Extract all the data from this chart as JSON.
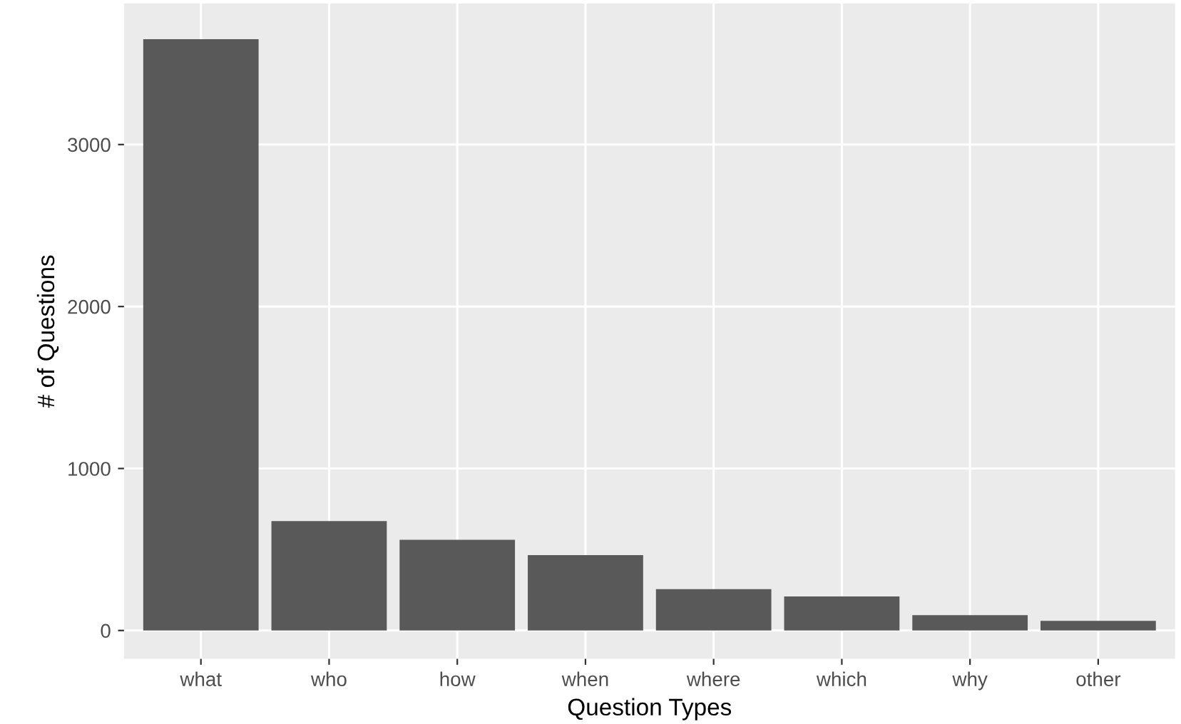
{
  "chart_data": {
    "type": "bar",
    "xlabel": "Question Types",
    "ylabel": "# of Questions",
    "categories": [
      "what",
      "who",
      "how",
      "when",
      "where",
      "which",
      "why",
      "other"
    ],
    "values": [
      3650,
      675,
      560,
      465,
      255,
      210,
      95,
      60
    ],
    "color": "#595959",
    "ylim": [
      -175,
      3870
    ],
    "yticks": [
      0,
      1000,
      2000,
      3000
    ],
    "grid": true
  }
}
